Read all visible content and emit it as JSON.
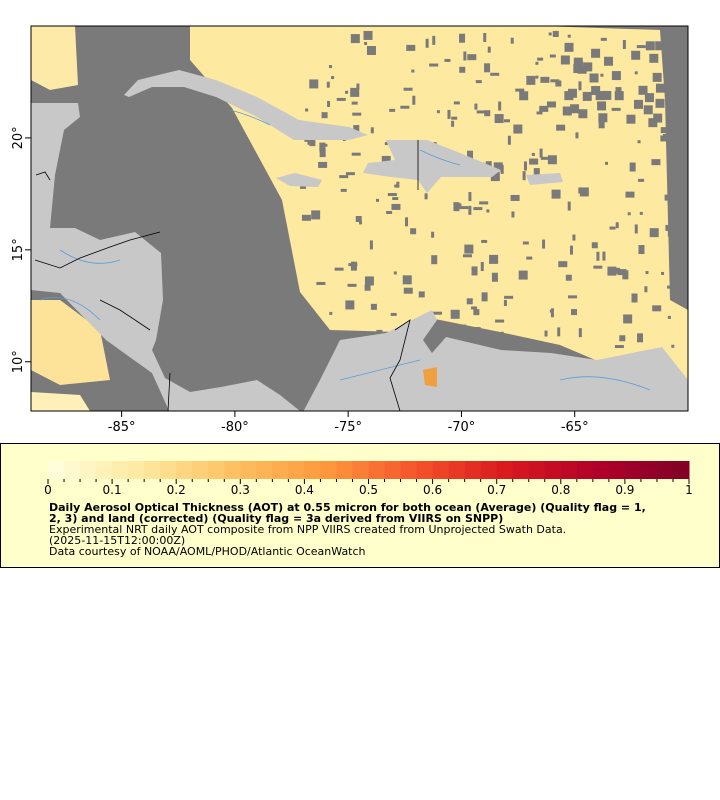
{
  "map": {
    "lon_range": [
      -89,
      -60
    ],
    "lat_range": [
      7.8,
      25
    ],
    "x_ticks": [
      "-85°",
      "-80°",
      "-75°",
      "-70°",
      "-65°"
    ],
    "x_tick_values": [
      -85,
      -80,
      -75,
      -70,
      -65
    ],
    "y_ticks": [
      "10°",
      "15°",
      "20°"
    ],
    "y_tick_values": [
      10,
      15,
      20
    ],
    "colors": {
      "ocean_nodata": "#7a7a7a",
      "land": "#c8c8c8",
      "rivers": "#5a9bd8",
      "borders": "#000000",
      "aerosol_typical": "#fde9a0"
    }
  },
  "legend": {
    "colorbar": {
      "min": 0,
      "max": 1,
      "tick_labels": [
        "0",
        "0.1",
        "0.2",
        "0.3",
        "0.4",
        "0.5",
        "0.6",
        "0.7",
        "0.8",
        "0.9",
        "1"
      ],
      "color_stops": [
        "#ffffe0",
        "#fee9a0",
        "#fdc164",
        "#fd9a3e",
        "#f5552b",
        "#d9191e",
        "#b0002a",
        "#800026"
      ]
    },
    "title_line1": "Daily Aerosol Optical Thickness (AOT) at 0.55 micron for both ocean (Average) (Quality flag = 1,",
    "title_line2": "2, 3) and land (corrected) (Quality flag = 3a derived from VIIRS on SNPP)",
    "description": "Experimental NRT daily AOT composite from NPP VIIRS created from Unprojected Swath Data.",
    "time": "(2025-11-15T12:00:00Z)",
    "credit": "Data courtesy of NOAA/AOML/PHOD/Atlantic OceanWatch"
  }
}
